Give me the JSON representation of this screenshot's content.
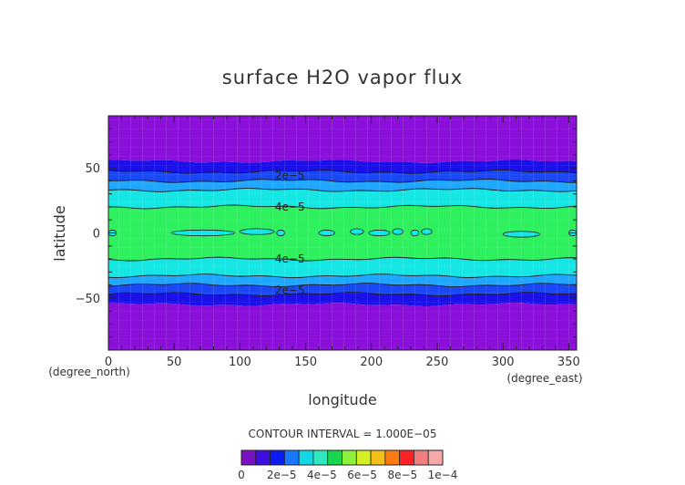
{
  "chart_data": {
    "type": "heatmap",
    "title": "surface H2O vapor flux",
    "xlabel": "longitude",
    "ylabel": "latitude",
    "x_unit": "(degree_east)",
    "y_unit": "(degree_north)",
    "xlim": [
      0,
      356
    ],
    "ylim": [
      -90,
      90
    ],
    "x_ticks": [
      "0",
      "50",
      "100",
      "150",
      "200",
      "250",
      "300",
      "350"
    ],
    "y_ticks": [
      "50",
      "0",
      "−50"
    ],
    "contour_interval_text": "CONTOUR INTERVAL = 1.000E−05",
    "contour_labels": [
      {
        "text": "2e−5",
        "x": 138,
        "y": 44
      },
      {
        "text": "4e−5",
        "x": 138,
        "y": 20
      },
      {
        "text": "4e−5",
        "x": 138,
        "y": -20
      },
      {
        "text": "2e−5",
        "x": 138,
        "y": -44
      }
    ],
    "bands": [
      {
        "from": 55,
        "to": 90,
        "level": 0
      },
      {
        "from": 47,
        "to": 55,
        "level": 1
      },
      {
        "from": 40,
        "to": 47,
        "level": 2
      },
      {
        "from": 33,
        "to": 40,
        "level": 3
      },
      {
        "from": 20,
        "to": 33,
        "level": 4
      },
      {
        "from": -20,
        "to": 20,
        "level": 5
      },
      {
        "from": -33,
        "to": -20,
        "level": 4
      },
      {
        "from": -40,
        "to": -33,
        "level": 3
      },
      {
        "from": -47,
        "to": -40,
        "level": 2
      },
      {
        "from": -55,
        "to": -47,
        "level": 1
      },
      {
        "from": -90,
        "to": -55,
        "level": 0
      }
    ],
    "islands": [
      {
        "x0": 0,
        "x1": 6,
        "y": 0
      },
      {
        "x0": 48,
        "x1": 96,
        "y": 0
      },
      {
        "x0": 100,
        "x1": 126,
        "y": 1
      },
      {
        "x0": 128,
        "x1": 134,
        "y": 0
      },
      {
        "x0": 160,
        "x1": 172,
        "y": 0
      },
      {
        "x0": 184,
        "x1": 194,
        "y": 1
      },
      {
        "x0": 198,
        "x1": 214,
        "y": 0
      },
      {
        "x0": 216,
        "x1": 224,
        "y": 1
      },
      {
        "x0": 230,
        "x1": 236,
        "y": 0
      },
      {
        "x0": 238,
        "x1": 246,
        "y": 1
      },
      {
        "x0": 300,
        "x1": 328,
        "y": -1
      },
      {
        "x0": 350,
        "x1": 356,
        "y": 0
      }
    ],
    "colorbar": {
      "colors": [
        "#7a12c2",
        "#3d0ee0",
        "#0a1cf0",
        "#1878ff",
        "#14d7e6",
        "#2fe8c0",
        "#1ad64e",
        "#8ef03a",
        "#d5ef25",
        "#f5bf1a",
        "#ff7a10",
        "#ff2222",
        "#f08080",
        "#f7a8a8"
      ],
      "tick_labels": [
        "0",
        "2e−5",
        "4e−5",
        "6e−5",
        "8e−5",
        "1e−4"
      ]
    },
    "fill_colors": {
      "level0": "#8a0fd8",
      "level1": "#1b10e8",
      "level2": "#1a48f5",
      "level3": "#1fa6ff",
      "level4": "#15e6e3",
      "level5": "#2ef05e"
    }
  }
}
